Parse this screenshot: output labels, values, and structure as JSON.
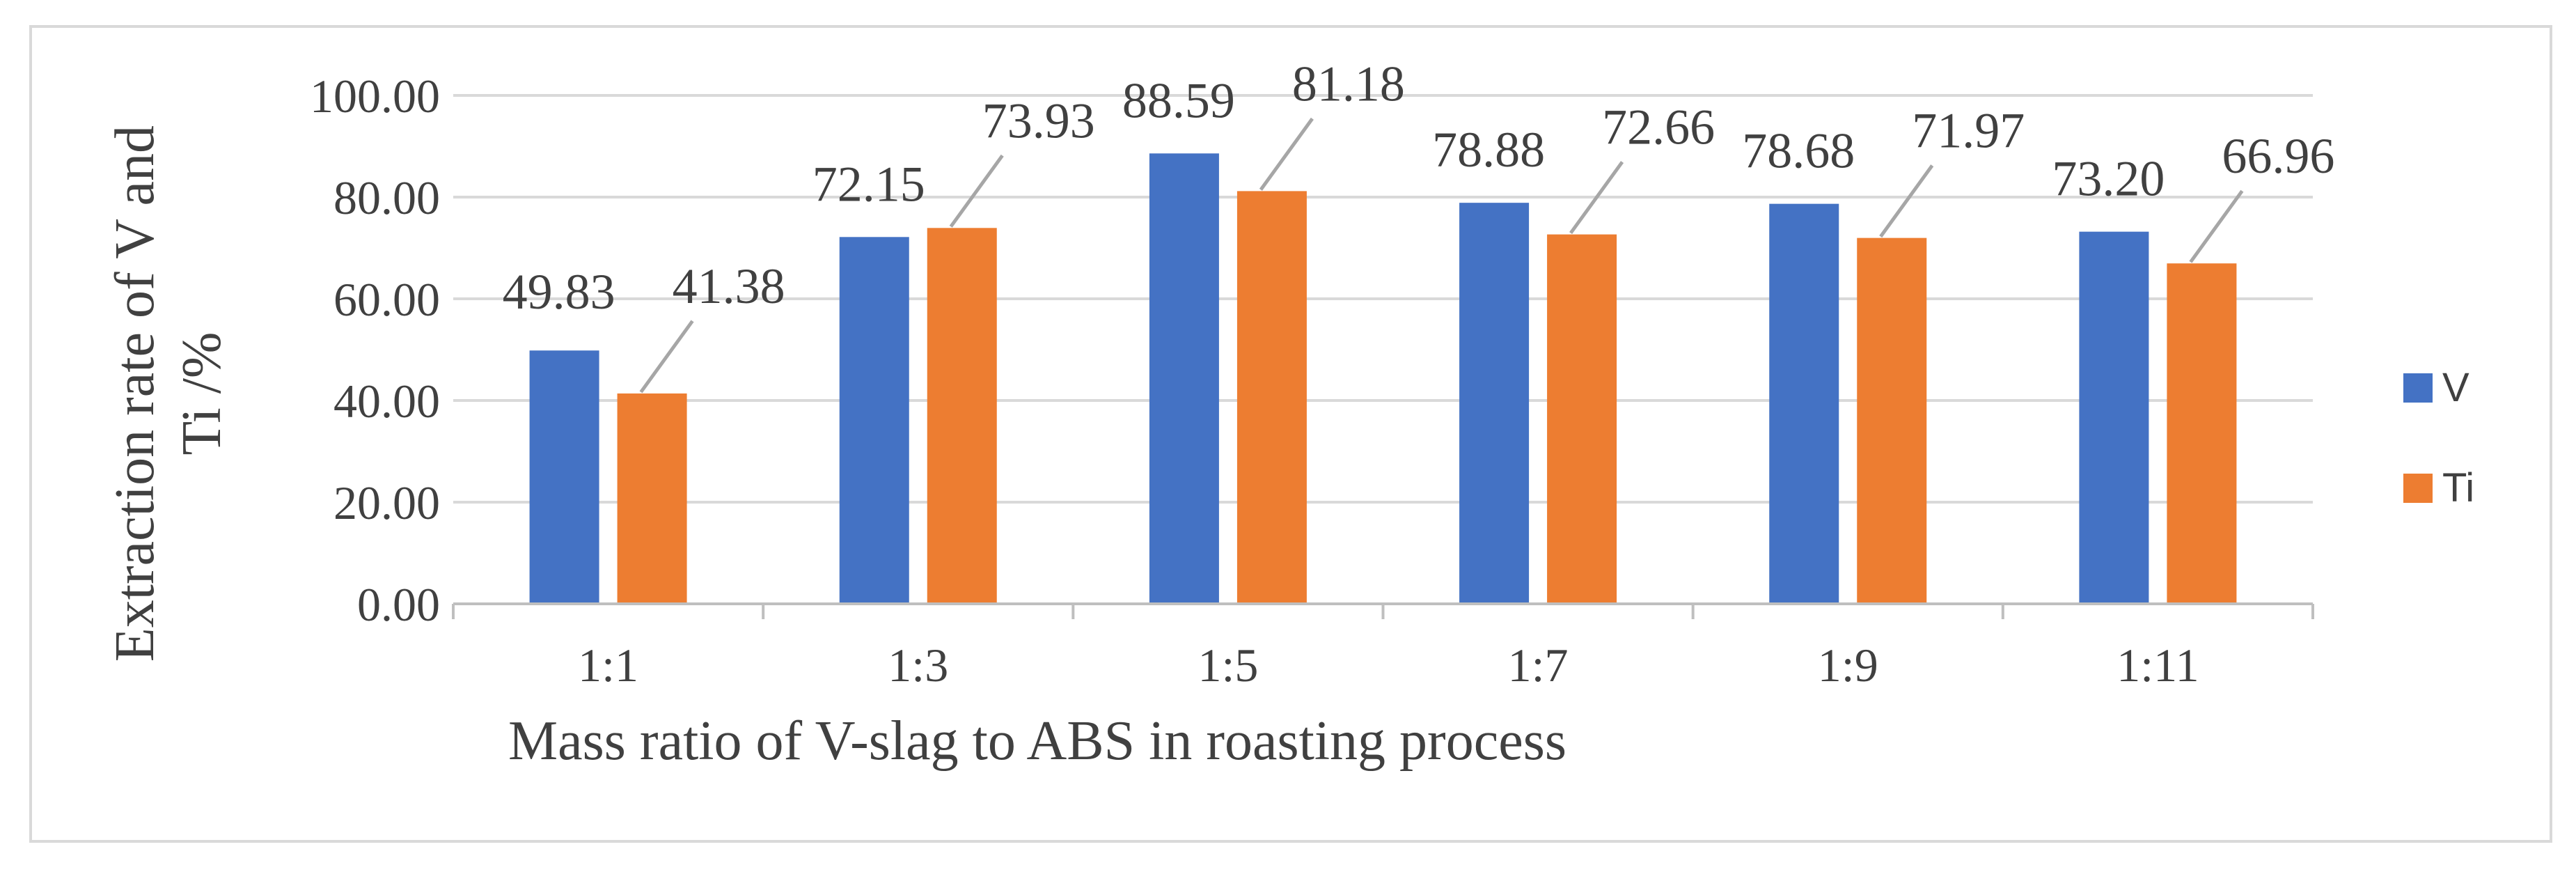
{
  "chart_data": {
    "type": "bar",
    "title": "",
    "xlabel": "Mass ratio of V-slag to ABS in roasting process",
    "ylabel_lines": [
      "Extraction rate of V and",
      "Ti /%"
    ],
    "categories": [
      "1:1",
      "1:3",
      "1:5",
      "1:7",
      "1:9",
      "1:11"
    ],
    "series": [
      {
        "name": "V",
        "color": "#4472C4",
        "values": [
          49.83,
          72.15,
          88.59,
          78.88,
          78.68,
          73.2
        ],
        "labels": [
          "49.83",
          "72.15",
          "88.59",
          "78.88",
          "78.68",
          "73.20"
        ]
      },
      {
        "name": "Ti",
        "color": "#ED7D31",
        "values": [
          41.38,
          73.93,
          81.18,
          72.66,
          71.97,
          66.96
        ],
        "labels": [
          "41.38",
          "73.93",
          "81.18",
          "72.66",
          "71.97",
          "66.96"
        ]
      }
    ],
    "ylim": [
      0,
      100
    ],
    "yticks": [
      "0.00",
      "20.00",
      "40.00",
      "60.00",
      "80.00",
      "100.00"
    ],
    "grid": true,
    "legend_position": "right",
    "colors": {
      "grid": "#D9D9D9",
      "axis": "#BFBFBF",
      "text": "#404040",
      "leader": "#A6A6A6",
      "border": "#D9D9D9"
    }
  }
}
